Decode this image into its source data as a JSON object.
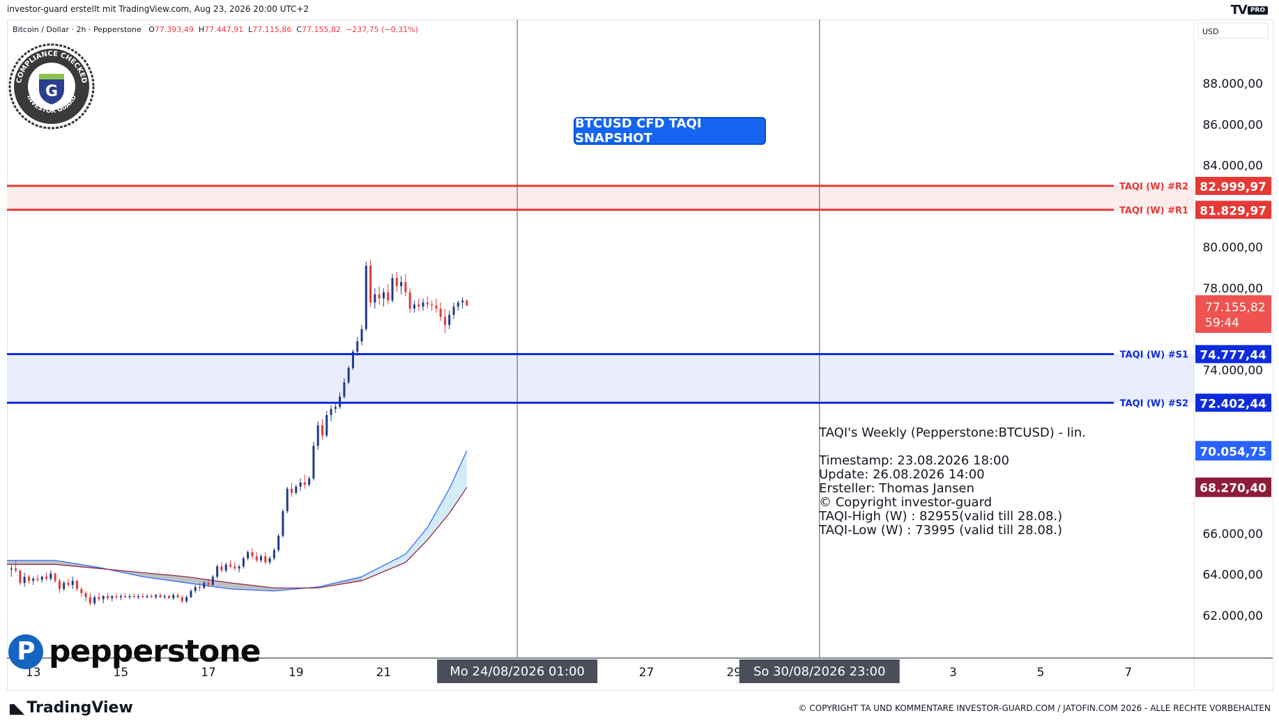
{
  "header": {
    "attribution": "investor-guard erstellt mit TradingView.com, Aug 23, 2026 20:00 UTC+2",
    "brand": "TV",
    "brand_badge": "PRO"
  },
  "symbol": {
    "name": "Bitcoin / Dollar · 2h · Pepperstone",
    "o_label": "O",
    "o": "77.393,49",
    "h_label": "H",
    "h": "77.447,91",
    "l_label": "L",
    "l": "77.115,86",
    "c_label": "C",
    "c": "77.155,82",
    "change": "−237,75 (−0,31%)"
  },
  "currency": "USD",
  "seal": {
    "text_top": "COMPLIANCE CHECKED",
    "text_bottom": "INVESTOR GUARD",
    "letter": "G"
  },
  "snapshot_label": "BTCUSD CFD TAQI SNAPSHOT",
  "info": {
    "line1": "TAQI's Weekly (Pepperstone:BTCUSD) - lin.",
    "line2": "Timestamp: 23.08.2026 18:00",
    "line3": "Update: 26.08.2026 14:00",
    "line4": "Ersteller: Thomas Jansen",
    "line5": "© Copyright investor-guard",
    "line6": "TAQI-High (W) : 82955(valid till 28.08.)",
    "line7": "TAQI-Low (W) : 73995 (valid till 28.08.)"
  },
  "watermark": "pepperstone",
  "footer": {
    "logo": "TradingView",
    "copyright": "© COPYRIGHT TA UND KOMMENTARE INVESTOR-GUARD.COM / JATOFIN.COM 2026 - ALLE RECHTE VORBEHALTEN"
  },
  "colors": {
    "resistance": "#e53935",
    "support": "#0d2bdc",
    "up": "#1e3a8a",
    "down": "#e53935",
    "cloud_fill": "#cfe9f7",
    "cloud_gray": "#b0b0b0",
    "ema_blue": "#2962ff",
    "ema_red": "#8e1b3a"
  },
  "chart_data": {
    "type": "candlestick",
    "y_axis": {
      "min": 60000,
      "max": 90000,
      "ticks": [
        "88.000,00",
        "86.000,00",
        "84.000,00",
        "80.000,00",
        "78.000,00",
        "74.000,00",
        "66.000,00",
        "64.000,00",
        "62.000,00"
      ],
      "tick_values": [
        88000,
        86000,
        84000,
        80000,
        78000,
        74000,
        66000,
        64000,
        62000
      ]
    },
    "x_axis": {
      "ticks": [
        "13",
        "15",
        "17",
        "19",
        "21",
        "27",
        "29",
        "3",
        "5",
        "7"
      ],
      "tick_positions": [
        13,
        15,
        17,
        19,
        21,
        27,
        29,
        34,
        36,
        38
      ]
    },
    "crosshairs": [
      {
        "label": "Mo 24/08/2026   01:00",
        "x": 24.05
      },
      {
        "label": "So 30/08/2026   23:00",
        "x": 30.95
      }
    ],
    "levels": [
      {
        "name": "TAQI (W) #R2",
        "value": 82999.97,
        "label": "82.999,97",
        "kind": "resistance"
      },
      {
        "name": "TAQI (W) #R1",
        "value": 81829.97,
        "label": "81.829,97",
        "kind": "resistance"
      },
      {
        "name": "TAQI (W) #S1",
        "value": 74777.44,
        "label": "74.777,44",
        "kind": "support"
      },
      {
        "name": "TAQI (W) #S2",
        "value": 72402.44,
        "label": "72.402,44",
        "kind": "support"
      }
    ],
    "last_price": {
      "label": "77.155,82",
      "countdown": "59:44",
      "value": 77155.82
    },
    "indicator_labels": [
      {
        "label": "70.054,75",
        "value": 70054.75,
        "color": "#2962ff"
      },
      {
        "label": "68.270,40",
        "value": 68270.4,
        "color": "#8e1b3a"
      }
    ],
    "x_range": [
      12.4,
      39.5
    ],
    "candles": [
      [
        12.5,
        64250,
        64450,
        63900,
        64300
      ],
      [
        12.6,
        64300,
        64700,
        64100,
        64200
      ],
      [
        12.7,
        64200,
        64250,
        63500,
        63600
      ],
      [
        12.8,
        63600,
        64100,
        63400,
        63900
      ],
      [
        12.9,
        63900,
        64000,
        63550,
        63700
      ],
      [
        13.0,
        63700,
        63900,
        63500,
        63800
      ],
      [
        13.1,
        63800,
        64000,
        63650,
        63750
      ],
      [
        13.2,
        63750,
        63950,
        63600,
        63900
      ],
      [
        13.3,
        63900,
        64100,
        63700,
        63800
      ],
      [
        13.4,
        63800,
        64200,
        63700,
        64050
      ],
      [
        13.5,
        64050,
        64100,
        63600,
        63700
      ],
      [
        13.6,
        63700,
        63800,
        63100,
        63300
      ],
      [
        13.7,
        63300,
        63700,
        63200,
        63600
      ],
      [
        13.8,
        63600,
        63800,
        63400,
        63500
      ],
      [
        13.9,
        63500,
        63900,
        63300,
        63700
      ],
      [
        14.0,
        63700,
        63750,
        63200,
        63300
      ],
      [
        14.1,
        63300,
        63400,
        62900,
        63100
      ],
      [
        14.2,
        63100,
        63200,
        62700,
        62900
      ],
      [
        14.3,
        62900,
        63100,
        62500,
        62600
      ],
      [
        14.4,
        62600,
        63000,
        62500,
        62900
      ],
      [
        14.5,
        62900,
        63100,
        62700,
        62800
      ],
      [
        14.6,
        62800,
        63000,
        62600,
        62950
      ],
      [
        14.7,
        62950,
        63100,
        62750,
        62850
      ],
      [
        14.8,
        62850,
        63000,
        62700,
        62950
      ],
      [
        14.9,
        62950,
        63100,
        62800,
        62900
      ],
      [
        15.0,
        62900,
        63050,
        62750,
        62950
      ],
      [
        15.1,
        62950,
        63100,
        62850,
        62900
      ],
      [
        15.2,
        62900,
        63050,
        62800,
        62950
      ],
      [
        15.3,
        62950,
        63100,
        62850,
        62900
      ],
      [
        15.4,
        62900,
        63050,
        62800,
        62950
      ],
      [
        15.5,
        62950,
        63100,
        62850,
        62900
      ],
      [
        15.6,
        62900,
        63050,
        62850,
        62950
      ],
      [
        15.7,
        62950,
        63050,
        62850,
        62900
      ],
      [
        15.8,
        62900,
        63050,
        62800,
        63000
      ],
      [
        15.9,
        63000,
        63100,
        62850,
        62900
      ],
      [
        16.0,
        62900,
        63050,
        62800,
        62950
      ],
      [
        16.1,
        62950,
        63000,
        62800,
        62850
      ],
      [
        16.2,
        62850,
        63100,
        62750,
        63000
      ],
      [
        16.3,
        63000,
        63100,
        62850,
        62900
      ],
      [
        16.4,
        62900,
        63000,
        62600,
        62700
      ],
      [
        16.5,
        62700,
        63000,
        62600,
        62900
      ],
      [
        16.6,
        62900,
        63300,
        62850,
        63200
      ],
      [
        16.7,
        63200,
        63500,
        63100,
        63400
      ],
      [
        16.8,
        63400,
        63600,
        63200,
        63350
      ],
      [
        16.9,
        63350,
        63700,
        63300,
        63600
      ],
      [
        17.0,
        63600,
        63800,
        63400,
        63500
      ],
      [
        17.1,
        63500,
        64000,
        63450,
        63900
      ],
      [
        17.2,
        63900,
        64500,
        63800,
        64400
      ],
      [
        17.3,
        64400,
        64600,
        64100,
        64200
      ],
      [
        17.4,
        64200,
        64600,
        64100,
        64500
      ],
      [
        17.5,
        64500,
        64700,
        64300,
        64400
      ],
      [
        17.6,
        64400,
        64600,
        64200,
        64300
      ],
      [
        17.7,
        64300,
        64500,
        64100,
        64400
      ],
      [
        17.8,
        64400,
        64900,
        64300,
        64800
      ],
      [
        17.9,
        64800,
        65200,
        64700,
        65100
      ],
      [
        18.0,
        65100,
        65300,
        64800,
        64900
      ],
      [
        18.1,
        64900,
        65100,
        64600,
        64700
      ],
      [
        18.2,
        64700,
        65000,
        64600,
        64900
      ],
      [
        18.3,
        64900,
        65100,
        64500,
        64600
      ],
      [
        18.4,
        64600,
        64900,
        64500,
        64800
      ],
      [
        18.5,
        64800,
        65300,
        64700,
        65200
      ],
      [
        18.6,
        65200,
        66000,
        65100,
        65900
      ],
      [
        18.7,
        65900,
        67200,
        65800,
        67100
      ],
      [
        18.8,
        67100,
        68300,
        67000,
        68200
      ],
      [
        18.9,
        68200,
        68500,
        67800,
        68000
      ],
      [
        19.0,
        68000,
        68400,
        67900,
        68300
      ],
      [
        19.1,
        68300,
        68700,
        68100,
        68500
      ],
      [
        19.2,
        68500,
        68900,
        68200,
        68400
      ],
      [
        19.3,
        68400,
        68800,
        68300,
        68700
      ],
      [
        19.4,
        68700,
        70500,
        68600,
        70300
      ],
      [
        19.5,
        70300,
        71500,
        70100,
        71300
      ],
      [
        19.6,
        71300,
        71600,
        70600,
        70800
      ],
      [
        19.7,
        70800,
        72000,
        70700,
        71800
      ],
      [
        19.8,
        71800,
        72300,
        71500,
        72100
      ],
      [
        19.9,
        72100,
        72400,
        71900,
        72200
      ],
      [
        20.0,
        72200,
        72900,
        72100,
        72700
      ],
      [
        20.1,
        72700,
        73600,
        72600,
        73400
      ],
      [
        20.2,
        73400,
        74200,
        73300,
        74100
      ],
      [
        20.3,
        74100,
        75000,
        74000,
        74900
      ],
      [
        20.4,
        74900,
        75600,
        74700,
        75400
      ],
      [
        20.5,
        75400,
        76200,
        75200,
        76000
      ],
      [
        20.6,
        76000,
        79300,
        75900,
        79100
      ],
      [
        20.7,
        79100,
        79400,
        77100,
        77300
      ],
      [
        20.8,
        77300,
        78000,
        77000,
        77700
      ],
      [
        20.9,
        77700,
        78100,
        77200,
        77500
      ],
      [
        21.0,
        77500,
        78000,
        77100,
        77800
      ],
      [
        21.1,
        77800,
        78200,
        77200,
        77400
      ],
      [
        21.2,
        77400,
        78700,
        77300,
        78500
      ],
      [
        21.3,
        78500,
        78800,
        77800,
        78100
      ],
      [
        21.4,
        78100,
        78600,
        77700,
        78300
      ],
      [
        21.5,
        78300,
        78700,
        77600,
        77800
      ],
      [
        21.6,
        77800,
        78000,
        76800,
        77000
      ],
      [
        21.7,
        77000,
        77400,
        76800,
        77200
      ],
      [
        21.8,
        77200,
        77500,
        76900,
        77100
      ],
      [
        21.9,
        77100,
        77500,
        76900,
        77300
      ],
      [
        22.0,
        77300,
        77600,
        77000,
        77200
      ],
      [
        22.1,
        77200,
        77400,
        76900,
        77150
      ],
      [
        22.2,
        77150,
        77500,
        76800,
        77000
      ],
      [
        22.3,
        77000,
        77300,
        76400,
        76600
      ],
      [
        22.4,
        76600,
        77000,
        75800,
        76200
      ],
      [
        22.5,
        76200,
        76900,
        76000,
        76700
      ],
      [
        22.6,
        76700,
        77300,
        76500,
        77100
      ],
      [
        22.7,
        77100,
        77400,
        76900,
        77300
      ],
      [
        22.8,
        77300,
        77550,
        77000,
        77393
      ],
      [
        22.9,
        77393,
        77448,
        77116,
        77156
      ]
    ],
    "ema_blue": [
      [
        12.4,
        64700
      ],
      [
        13.5,
        64700
      ],
      [
        14.5,
        64350
      ],
      [
        15.5,
        63900
      ],
      [
        16.5,
        63600
      ],
      [
        17.5,
        63300
      ],
      [
        18.5,
        63200
      ],
      [
        19.5,
        63400
      ],
      [
        20.5,
        63900
      ],
      [
        21.5,
        65000
      ],
      [
        22.0,
        66300
      ],
      [
        22.5,
        68200
      ],
      [
        22.9,
        70054
      ]
    ],
    "ema_red": [
      [
        12.4,
        64500
      ],
      [
        13.5,
        64500
      ],
      [
        14.5,
        64300
      ],
      [
        15.5,
        64100
      ],
      [
        16.5,
        63900
      ],
      [
        17.5,
        63600
      ],
      [
        18.5,
        63350
      ],
      [
        19.5,
        63350
      ],
      [
        20.5,
        63700
      ],
      [
        21.5,
        64600
      ],
      [
        22.0,
        65700
      ],
      [
        22.5,
        67000
      ],
      [
        22.9,
        68270
      ]
    ]
  }
}
